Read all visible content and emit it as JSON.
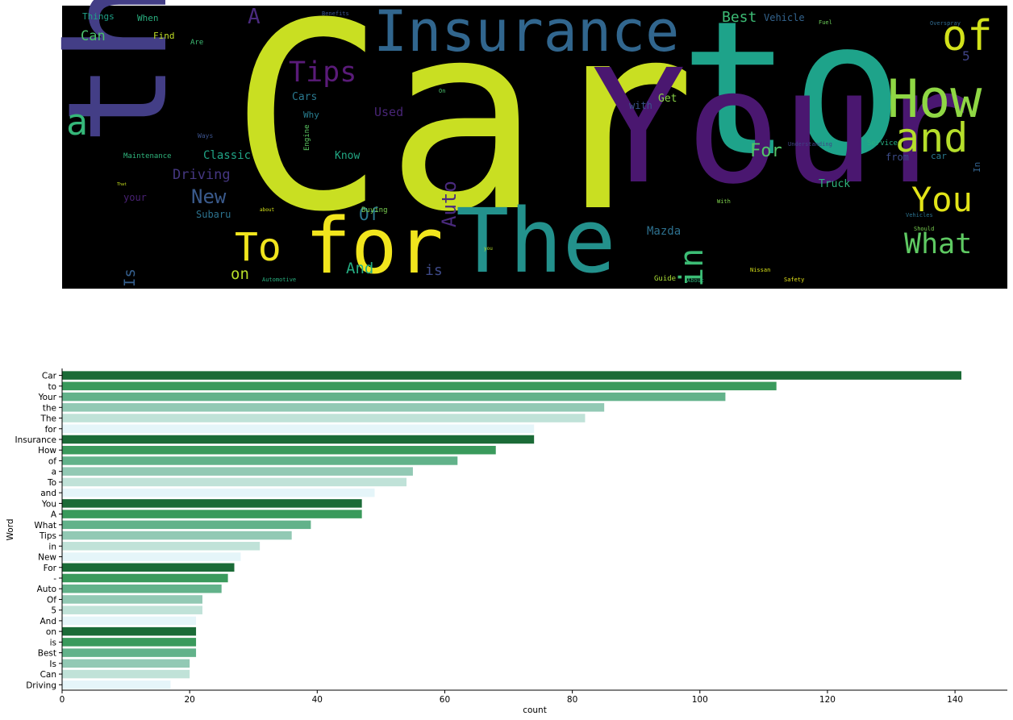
{
  "chart_data": [
    {
      "type": "wordcloud",
      "background": "#000000",
      "words": [
        {
          "text": "Car",
          "color": "#c9df22"
        },
        {
          "text": "to",
          "color": "#1ea38a"
        },
        {
          "text": "Your",
          "color": "#4a1770"
        },
        {
          "text": "the",
          "color": "#433e86"
        },
        {
          "text": "The",
          "color": "#23918c"
        },
        {
          "text": "for",
          "color": "#f1e51d"
        },
        {
          "text": "Insurance",
          "color": "#31668e"
        },
        {
          "text": "How",
          "color": "#8fd744"
        },
        {
          "text": "of",
          "color": "#d2e21b"
        },
        {
          "text": "a",
          "color": "#35b779"
        },
        {
          "text": "and",
          "color": "#b5de2b"
        },
        {
          "text": "You",
          "color": "#e2e418"
        },
        {
          "text": "To",
          "color": "#f1e51d"
        },
        {
          "text": "What",
          "color": "#5ec962"
        },
        {
          "text": "Tips",
          "color": "#5a1b79"
        },
        {
          "text": "in",
          "color": "#3cbc75"
        },
        {
          "text": "A",
          "color": "#4a2a7e"
        },
        {
          "text": "New",
          "color": "#3a5a8c"
        },
        {
          "text": "For",
          "color": "#52c569"
        },
        {
          "text": "Auto",
          "color": "#4a2a7e"
        },
        {
          "text": "Of",
          "color": "#2a788e"
        },
        {
          "text": "5",
          "color": "#404488"
        },
        {
          "text": "And",
          "color": "#25ac82"
        },
        {
          "text": "on",
          "color": "#b8de29"
        },
        {
          "text": "is",
          "color": "#3e4a89"
        },
        {
          "text": "Best",
          "color": "#3cbc75"
        },
        {
          "text": "Is",
          "color": "#355f8d"
        },
        {
          "text": "Can",
          "color": "#4ac16d"
        },
        {
          "text": "Driving",
          "color": "#453781"
        },
        {
          "text": "Used",
          "color": "#482576"
        },
        {
          "text": "Mazda",
          "color": "#2d708e"
        },
        {
          "text": "Cars",
          "color": "#2a788e"
        },
        {
          "text": "Classic",
          "color": "#20a486"
        },
        {
          "text": "Why",
          "color": "#287c8e"
        },
        {
          "text": "Know",
          "color": "#22a884"
        },
        {
          "text": "with",
          "color": "#3a548c"
        },
        {
          "text": "Get",
          "color": "#8ad647"
        },
        {
          "text": "from",
          "color": "#3d4d8a"
        },
        {
          "text": "car",
          "color": "#2a788e"
        },
        {
          "text": "In",
          "color": "#33628d"
        },
        {
          "text": "Truck",
          "color": "#2fb47c"
        },
        {
          "text": "Vehicle",
          "color": "#33638d"
        },
        {
          "text": "Things",
          "color": "#1fa088"
        },
        {
          "text": "When",
          "color": "#29af7f"
        },
        {
          "text": "Find",
          "color": "#c0df25"
        },
        {
          "text": "Are",
          "color": "#3dbc74"
        },
        {
          "text": "your",
          "color": "#482173"
        },
        {
          "text": "Subaru",
          "color": "#2c728e"
        },
        {
          "text": "Buying",
          "color": "#7ad151"
        },
        {
          "text": "Engine",
          "color": "#5cc863"
        },
        {
          "text": "Ways",
          "color": "#3b528b"
        },
        {
          "text": "Maintenance",
          "color": "#2fb47c"
        },
        {
          "text": "Automotive",
          "color": "#29af7f"
        },
        {
          "text": "Nissan",
          "color": "#d8e219"
        },
        {
          "text": "Safety",
          "color": "#e5e419"
        },
        {
          "text": "With",
          "color": "#7fd34e"
        },
        {
          "text": "Guide",
          "color": "#a8db34"
        },
        {
          "text": "About",
          "color": "#2eb37c"
        },
        {
          "text": "Service",
          "color": "#26ad81"
        },
        {
          "text": "Should",
          "color": "#7ad151"
        },
        {
          "text": "Fuel",
          "color": "#6ccd5a"
        },
        {
          "text": "Overspray",
          "color": "#306a8e"
        },
        {
          "text": "Benefits",
          "color": "#3b528b"
        },
        {
          "text": "That",
          "color": "#cae11f"
        },
        {
          "text": "about",
          "color": "#d5e21a"
        },
        {
          "text": "you",
          "color": "#b5de2b"
        },
        {
          "text": "On",
          "color": "#4ac16d"
        },
        {
          "text": "Understanding",
          "color": "#414487"
        },
        {
          "text": "Vehicles",
          "color": "#2c728e"
        }
      ]
    },
    {
      "type": "bar",
      "orientation": "horizontal",
      "xlabel": "count",
      "ylabel": "Word",
      "xlim": [
        0,
        148
      ],
      "xticks": [
        0,
        20,
        40,
        60,
        80,
        100,
        120,
        140
      ],
      "palette": [
        "#1b6b37",
        "#3a9a5c",
        "#62b28a",
        "#92c9b4",
        "#c0e2d8",
        "#e5f5f9"
      ],
      "categories": [
        "Car",
        "to",
        "Your",
        "the",
        "The",
        "for",
        "Insurance",
        "How",
        "of",
        "a",
        "To",
        "and",
        "You",
        "A",
        "What",
        "Tips",
        "in",
        "New",
        "For",
        "-",
        "Auto",
        "Of",
        "5",
        "And",
        "on",
        "is",
        "Best",
        "Is",
        "Can",
        "Driving"
      ],
      "values": [
        141,
        112,
        104,
        85,
        82,
        74,
        74,
        68,
        62,
        55,
        54,
        49,
        47,
        47,
        39,
        36,
        31,
        28,
        27,
        26,
        25,
        22,
        22,
        21,
        21,
        21,
        21,
        20,
        20,
        17
      ]
    }
  ]
}
